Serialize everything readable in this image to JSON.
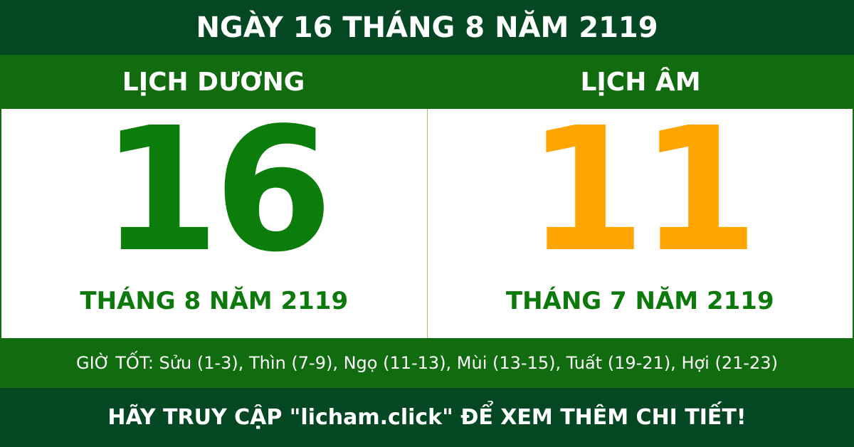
{
  "title": "NGÀY 16 THÁNG 8 NĂM 2119",
  "solar": {
    "label": "LỊCH DƯƠNG",
    "day": "16",
    "month_year": "THÁNG 8 NĂM 2119",
    "color": "#0b7d0b"
  },
  "lunar": {
    "label": "LỊCH ÂM",
    "day": "11",
    "month_year": "THÁNG 7 NĂM 2119",
    "color": "#ffa500"
  },
  "good_hours": "GIỜ TỐT: Sửu (1-3), Thìn (7-9), Ngọ (11-13), Mùi (13-15), Tuất (19-21), Hợi (21-23)",
  "footer": "HÃY TRUY CẬP \"licham.click\" ĐỂ XEM THÊM CHI TIẾT!"
}
